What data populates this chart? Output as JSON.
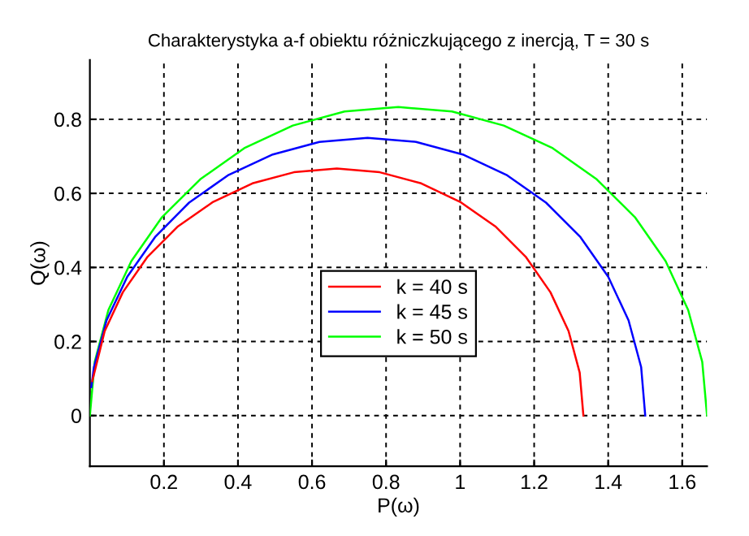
{
  "chart_data": {
    "type": "line",
    "title": "Charakterystyka a-f obiektu różniczkującego z inercją, T = 30 s",
    "xlabel": "P(ω)",
    "ylabel": "Q(ω)",
    "xlim": [
      0,
      1.667
    ],
    "ylim": [
      -0.137,
      0.96
    ],
    "xticks": [
      0.2,
      0.4,
      0.6,
      0.8,
      1,
      1.2,
      1.4,
      1.6
    ],
    "yticks": [
      0,
      0.2,
      0.4,
      0.6,
      0.8
    ],
    "grid": true,
    "legend": "center",
    "line_style": "solid",
    "series": [
      {
        "name": "k = 40 s",
        "color": "#ff0000",
        "x": [
          0.0065,
          0.04,
          0.089,
          0.156,
          0.238,
          0.333,
          0.439,
          0.551,
          0.667,
          0.783,
          0.895,
          1.0,
          1.095,
          1.177,
          1.244,
          1.293,
          1.323,
          1.333
        ],
        "values": [
          0.093,
          0.228,
          0.333,
          0.429,
          0.511,
          0.577,
          0.627,
          0.657,
          0.667,
          0.657,
          0.627,
          0.577,
          0.511,
          0.429,
          0.333,
          0.228,
          0.116,
          0
        ]
      },
      {
        "name": "k = 45 s",
        "color": "#0000ff",
        "x": [
          0.004,
          0.011,
          0.045,
          0.101,
          0.176,
          0.268,
          0.375,
          0.494,
          0.62,
          0.75,
          0.881,
          1.007,
          1.125,
          1.232,
          1.325,
          1.4,
          1.455,
          1.489,
          1.5
        ],
        "values": [
          0.077,
          0.131,
          0.257,
          0.375,
          0.482,
          0.575,
          0.65,
          0.705,
          0.739,
          0.75,
          0.739,
          0.705,
          0.65,
          0.575,
          0.482,
          0.375,
          0.257,
          0.131,
          0
        ]
      },
      {
        "name": "k = 50 s",
        "color": "#00ff00",
        "x": [
          0,
          0.013,
          0.05,
          0.112,
          0.195,
          0.298,
          0.417,
          0.548,
          0.688,
          0.833,
          0.978,
          1.118,
          1.25,
          1.369,
          1.472,
          1.555,
          1.616,
          1.654,
          1.667
        ],
        "values": [
          0,
          0.145,
          0.285,
          0.417,
          0.536,
          0.638,
          0.722,
          0.783,
          0.821,
          0.833,
          0.821,
          0.783,
          0.722,
          0.638,
          0.536,
          0.417,
          0.285,
          0.145,
          0
        ]
      }
    ]
  }
}
